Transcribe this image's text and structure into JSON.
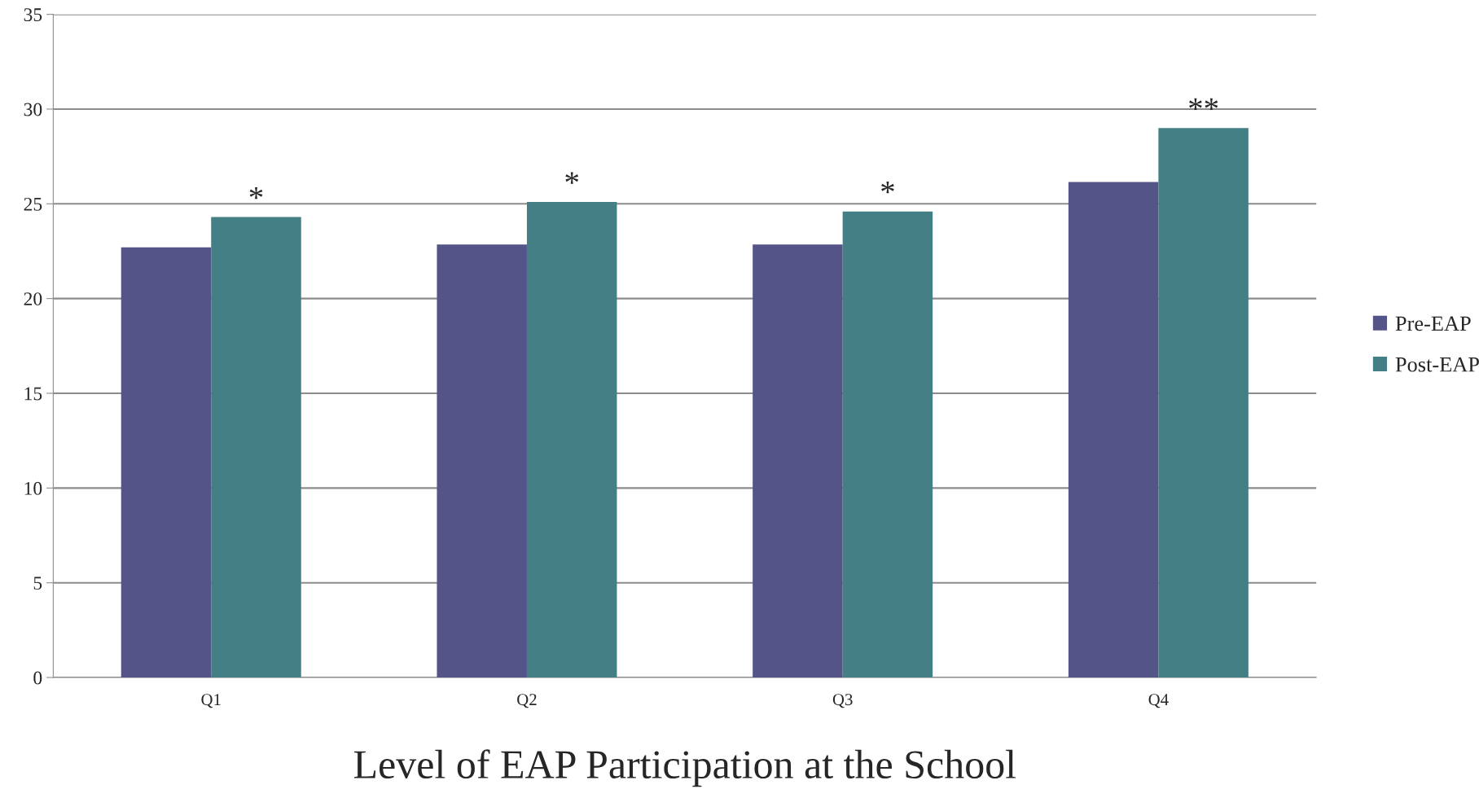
{
  "chart_data": {
    "type": "bar",
    "xlabel": "Level of EAP Participation at the School",
    "categories": [
      "Q1",
      "Q2",
      "Q3",
      "Q4"
    ],
    "series": [
      {
        "name": "Pre-EAP",
        "color": "#545489",
        "values": [
          22.7,
          22.85,
          22.85,
          26.15
        ]
      },
      {
        "name": "Post-EAP",
        "color": "#437f84",
        "values": [
          24.3,
          25.1,
          24.6,
          29.0
        ]
      }
    ],
    "ylim": [
      0,
      35
    ],
    "yticks": [
      0,
      5,
      10,
      15,
      20,
      25,
      30,
      35
    ],
    "grid": "y",
    "legend": "right",
    "annotations": [
      {
        "text": "*",
        "x": "Q1",
        "y": 24.3
      },
      {
        "text": "*",
        "x": "Q2",
        "y": 25.1
      },
      {
        "text": "*",
        "x": "Q3",
        "y": 24.6
      },
      {
        "text": "**",
        "x": "Q4",
        "y": 29.0
      }
    ]
  }
}
